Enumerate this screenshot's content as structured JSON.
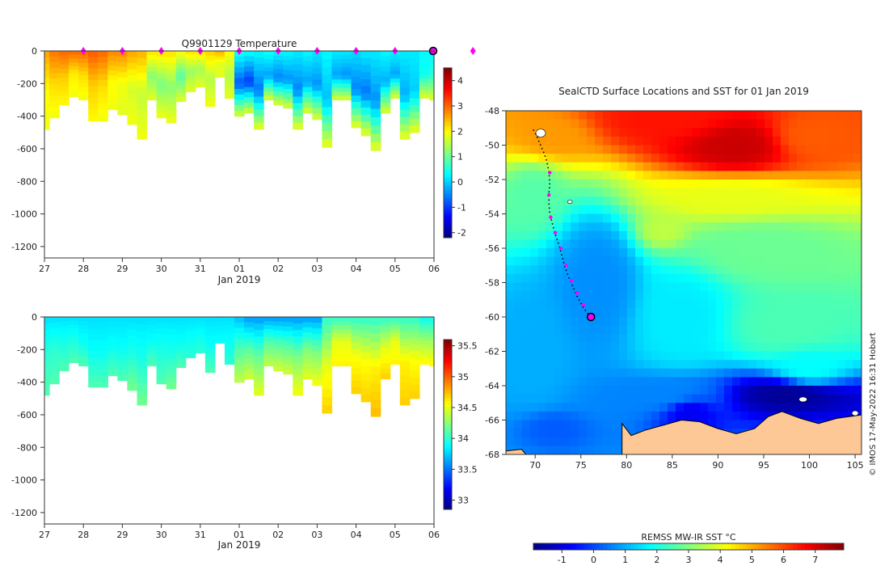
{
  "credit": "© IMOS 17-May-2022 16:31 Hobart",
  "colors": {
    "land": "#fdc896",
    "track": "#000000",
    "marker": "#ff00ff",
    "ice": "#ffffff"
  },
  "chart_data": [
    {
      "id": "temperature-section",
      "type": "heatmap",
      "title": "Q9901129  Temperature",
      "xlabel": "Jan 2019",
      "ylabel": "",
      "x_tick_labels": [
        "27",
        "28",
        "29",
        "30",
        "31",
        "01",
        "02",
        "03",
        "04",
        "05",
        "06"
      ],
      "y_ticks": [
        0,
        -200,
        -400,
        -600,
        -800,
        -1000,
        -1200
      ],
      "ylim": [
        -1270,
        0
      ],
      "colorbar": {
        "min": -2.2,
        "max": 4.5,
        "ticks": [
          -2,
          -1,
          0,
          1,
          2,
          3,
          4
        ],
        "palette": "jet"
      },
      "profile_markers_at_day": [
        1,
        2,
        3,
        4,
        5,
        6,
        7,
        8,
        9,
        10,
        11
      ],
      "profiles": [
        {
          "d": 0.0,
          "depth": 480,
          "v": [
            2.6,
            2.0,
            1.9
          ]
        },
        {
          "d": 0.25,
          "depth": 410,
          "v": [
            2.9,
            2.2,
            1.9
          ]
        },
        {
          "d": 0.5,
          "depth": 330,
          "v": [
            3.0,
            2.3,
            2.0
          ]
        },
        {
          "d": 0.75,
          "depth": 280,
          "v": [
            3.0,
            2.1,
            1.9
          ]
        },
        {
          "d": 1.0,
          "depth": 300,
          "v": [
            3.0,
            2.2,
            1.9
          ]
        },
        {
          "d": 1.25,
          "depth": 430,
          "v": [
            3.1,
            2.3,
            2.0
          ]
        },
        {
          "d": 1.5,
          "depth": 430,
          "v": [
            3.0,
            2.2,
            1.9
          ]
        },
        {
          "d": 1.75,
          "depth": 360,
          "v": [
            2.8,
            2.0,
            1.9
          ]
        },
        {
          "d": 2.0,
          "depth": 390,
          "v": [
            2.8,
            1.9,
            1.8
          ]
        },
        {
          "d": 2.25,
          "depth": 450,
          "v": [
            2.6,
            1.7,
            1.9
          ]
        },
        {
          "d": 2.5,
          "depth": 540,
          "v": [
            2.5,
            1.6,
            1.9
          ]
        },
        {
          "d": 2.75,
          "depth": 300,
          "v": [
            2.2,
            1.2,
            1.8
          ]
        },
        {
          "d": 3.0,
          "depth": 410,
          "v": [
            2.2,
            1.1,
            1.9
          ]
        },
        {
          "d": 3.25,
          "depth": 440,
          "v": [
            2.2,
            1.2,
            1.9
          ]
        },
        {
          "d": 3.5,
          "depth": 310,
          "v": [
            2.0,
            0.9,
            1.8
          ]
        },
        {
          "d": 3.75,
          "depth": 250,
          "v": [
            2.2,
            1.3,
            1.8
          ]
        },
        {
          "d": 4.0,
          "depth": 220,
          "v": [
            2.2,
            1.4,
            1.8
          ]
        },
        {
          "d": 4.25,
          "depth": 340,
          "v": [
            2.3,
            1.5,
            1.9
          ]
        },
        {
          "d": 4.5,
          "depth": 160,
          "v": [
            2.5,
            1.8,
            1.8
          ]
        },
        {
          "d": 4.75,
          "depth": 290,
          "v": [
            2.0,
            1.5,
            1.8
          ]
        },
        {
          "d": 5.0,
          "depth": 400,
          "v": [
            0.5,
            -0.8,
            1.8
          ]
        },
        {
          "d": 5.25,
          "depth": 380,
          "v": [
            0.4,
            -1.0,
            1.8
          ]
        },
        {
          "d": 5.5,
          "depth": 480,
          "v": [
            0.3,
            -0.6,
            1.9
          ]
        },
        {
          "d": 5.75,
          "depth": 300,
          "v": [
            0.4,
            -0.3,
            1.8
          ]
        },
        {
          "d": 6.0,
          "depth": 330,
          "v": [
            0.3,
            -0.5,
            1.8
          ]
        },
        {
          "d": 6.25,
          "depth": 350,
          "v": [
            0.3,
            -0.4,
            1.8
          ]
        },
        {
          "d": 6.5,
          "depth": 480,
          "v": [
            0.2,
            -0.5,
            1.9
          ]
        },
        {
          "d": 6.75,
          "depth": 380,
          "v": [
            0.3,
            -0.3,
            1.8
          ]
        },
        {
          "d": 7.0,
          "depth": 420,
          "v": [
            0.2,
            -0.4,
            1.8
          ]
        },
        {
          "d": 7.25,
          "depth": 590,
          "v": [
            0.3,
            -0.1,
            1.9
          ]
        },
        {
          "d": 7.5,
          "depth": 300,
          "v": [
            0.2,
            -0.3,
            1.8
          ]
        },
        {
          "d": 7.75,
          "depth": 300,
          "v": [
            0.2,
            -0.4,
            1.8
          ]
        },
        {
          "d": 8.0,
          "depth": 470,
          "v": [
            0.1,
            -0.5,
            1.9
          ]
        },
        {
          "d": 8.25,
          "depth": 520,
          "v": [
            0.2,
            -0.6,
            1.9
          ]
        },
        {
          "d": 8.5,
          "depth": 610,
          "v": [
            0.2,
            -0.4,
            1.9
          ]
        },
        {
          "d": 8.75,
          "depth": 380,
          "v": [
            0.3,
            -0.2,
            1.8
          ]
        },
        {
          "d": 9.0,
          "depth": 290,
          "v": [
            0.3,
            -0.3,
            1.8
          ]
        },
        {
          "d": 9.25,
          "depth": 540,
          "v": [
            0.2,
            -0.2,
            1.9
          ]
        },
        {
          "d": 9.5,
          "depth": 500,
          "v": [
            0.2,
            0.0,
            1.9
          ]
        },
        {
          "d": 9.75,
          "depth": 290,
          "v": [
            0.3,
            0.4,
            1.8
          ]
        },
        {
          "d": 10.0,
          "depth": 300,
          "v": [
            0.2,
            0.6,
            1.8
          ]
        }
      ]
    },
    {
      "id": "salinity-section",
      "type": "heatmap",
      "title": "",
      "xlabel": "Jan 2019",
      "ylabel": "",
      "x_tick_labels": [
        "27",
        "28",
        "29",
        "30",
        "31",
        "01",
        "02",
        "03",
        "04",
        "05",
        "06"
      ],
      "y_ticks": [
        0,
        -200,
        -400,
        -600,
        -800,
        -1000,
        -1200
      ],
      "ylim": [
        -1270,
        0
      ],
      "colorbar": {
        "min": 32.85,
        "max": 35.6,
        "ticks": [
          33,
          33.5,
          34,
          34.5,
          35,
          35.5
        ],
        "palette": "jet"
      },
      "profiles": [
        {
          "d": 0.0,
          "depth": 480,
          "v": [
            33.8,
            34.0,
            34.1
          ]
        },
        {
          "d": 0.25,
          "depth": 410,
          "v": [
            33.8,
            34.0,
            34.1
          ]
        },
        {
          "d": 0.5,
          "depth": 330,
          "v": [
            33.8,
            33.95,
            34.1
          ]
        },
        {
          "d": 0.75,
          "depth": 280,
          "v": [
            33.8,
            33.95,
            34.1
          ]
        },
        {
          "d": 1.0,
          "depth": 300,
          "v": [
            33.8,
            33.9,
            34.1
          ]
        },
        {
          "d": 1.25,
          "depth": 430,
          "v": [
            33.8,
            33.9,
            34.1
          ]
        },
        {
          "d": 1.5,
          "depth": 430,
          "v": [
            33.8,
            33.9,
            34.1
          ]
        },
        {
          "d": 1.75,
          "depth": 360,
          "v": [
            33.8,
            33.9,
            34.1
          ]
        },
        {
          "d": 2.0,
          "depth": 390,
          "v": [
            33.8,
            33.9,
            34.1
          ]
        },
        {
          "d": 2.25,
          "depth": 450,
          "v": [
            33.8,
            33.95,
            34.2
          ]
        },
        {
          "d": 2.5,
          "depth": 540,
          "v": [
            33.8,
            33.95,
            34.2
          ]
        },
        {
          "d": 2.75,
          "depth": 300,
          "v": [
            33.8,
            33.9,
            34.1
          ]
        },
        {
          "d": 3.0,
          "depth": 410,
          "v": [
            33.8,
            33.95,
            34.1
          ]
        },
        {
          "d": 3.25,
          "depth": 440,
          "v": [
            33.8,
            33.95,
            34.2
          ]
        },
        {
          "d": 3.5,
          "depth": 310,
          "v": [
            33.8,
            33.9,
            34.1
          ]
        },
        {
          "d": 3.75,
          "depth": 250,
          "v": [
            33.8,
            33.9,
            34.0
          ]
        },
        {
          "d": 4.0,
          "depth": 220,
          "v": [
            33.8,
            33.9,
            34.0
          ]
        },
        {
          "d": 4.25,
          "depth": 340,
          "v": [
            33.8,
            33.9,
            34.1
          ]
        },
        {
          "d": 4.5,
          "depth": 160,
          "v": [
            33.8,
            33.85,
            33.9
          ]
        },
        {
          "d": 4.75,
          "depth": 290,
          "v": [
            33.8,
            33.9,
            34.0
          ]
        },
        {
          "d": 5.0,
          "depth": 400,
          "v": [
            33.7,
            34.1,
            34.4
          ]
        },
        {
          "d": 5.25,
          "depth": 380,
          "v": [
            33.6,
            34.1,
            34.45
          ]
        },
        {
          "d": 5.5,
          "depth": 480,
          "v": [
            33.6,
            34.15,
            34.5
          ]
        },
        {
          "d": 5.75,
          "depth": 300,
          "v": [
            33.6,
            34.1,
            34.4
          ]
        },
        {
          "d": 6.0,
          "depth": 330,
          "v": [
            33.6,
            34.1,
            34.45
          ]
        },
        {
          "d": 6.25,
          "depth": 350,
          "v": [
            33.6,
            34.1,
            34.45
          ]
        },
        {
          "d": 6.5,
          "depth": 480,
          "v": [
            33.6,
            34.2,
            34.55
          ]
        },
        {
          "d": 6.75,
          "depth": 380,
          "v": [
            33.6,
            34.2,
            34.5
          ]
        },
        {
          "d": 7.0,
          "depth": 420,
          "v": [
            33.6,
            34.2,
            34.55
          ]
        },
        {
          "d": 7.25,
          "depth": 590,
          "v": [
            34.0,
            34.5,
            34.7
          ]
        },
        {
          "d": 7.5,
          "depth": 300,
          "v": [
            34.0,
            34.5,
            34.6
          ]
        },
        {
          "d": 7.75,
          "depth": 300,
          "v": [
            34.0,
            34.5,
            34.6
          ]
        },
        {
          "d": 8.0,
          "depth": 470,
          "v": [
            34.0,
            34.55,
            34.7
          ]
        },
        {
          "d": 8.25,
          "depth": 520,
          "v": [
            34.0,
            34.55,
            34.7
          ]
        },
        {
          "d": 8.5,
          "depth": 610,
          "v": [
            34.0,
            34.6,
            34.75
          ]
        },
        {
          "d": 8.75,
          "depth": 380,
          "v": [
            34.0,
            34.5,
            34.7
          ]
        },
        {
          "d": 9.0,
          "depth": 290,
          "v": [
            34.0,
            34.5,
            34.6
          ]
        },
        {
          "d": 9.25,
          "depth": 540,
          "v": [
            34.0,
            34.6,
            34.7
          ]
        },
        {
          "d": 9.5,
          "depth": 500,
          "v": [
            34.0,
            34.55,
            34.7
          ]
        },
        {
          "d": 9.75,
          "depth": 290,
          "v": [
            33.9,
            34.3,
            34.6
          ]
        },
        {
          "d": 10.0,
          "depth": 300,
          "v": [
            33.9,
            34.3,
            34.6
          ]
        }
      ]
    },
    {
      "id": "sst-map",
      "type": "heatmap",
      "title": "SealCTD Surface Locations and SST for 01 Jan 2019",
      "xlabel": "",
      "ylabel": "",
      "x_ticks": [
        70,
        75,
        80,
        85,
        90,
        95,
        100,
        105
      ],
      "y_ticks": [
        -48,
        -50,
        -52,
        -54,
        -56,
        -58,
        -60,
        -62,
        -64,
        -66,
        -68
      ],
      "xlim": [
        66.8,
        105.7
      ],
      "ylim": [
        -68,
        -48
      ],
      "colorbar": {
        "label": "REMSS MW-IR SST °C",
        "min": -1.9,
        "max": 7.9,
        "ticks": [
          -1,
          0,
          1,
          2,
          3,
          4,
          5,
          6,
          7
        ],
        "palette": "jet",
        "orientation": "horizontal"
      },
      "seal_track": [
        [
          69.8,
          -49.1
        ],
        [
          70.1,
          -49.4
        ],
        [
          70.5,
          -49.9
        ],
        [
          71.0,
          -50.5
        ],
        [
          71.3,
          -51.0
        ],
        [
          71.5,
          -51.6
        ],
        [
          71.6,
          -52.2
        ],
        [
          71.5,
          -52.8
        ],
        [
          71.5,
          -53.4
        ],
        [
          71.6,
          -54.0
        ],
        [
          71.9,
          -54.6
        ],
        [
          72.2,
          -55.2
        ],
        [
          72.6,
          -55.8
        ],
        [
          72.9,
          -56.4
        ],
        [
          73.2,
          -57.0
        ],
        [
          73.6,
          -57.6
        ],
        [
          74.1,
          -58.2
        ],
        [
          74.6,
          -58.8
        ],
        [
          75.1,
          -59.3
        ],
        [
          75.6,
          -59.7
        ],
        [
          76.1,
          -60.0
        ]
      ],
      "profile_markers": [
        [
          71.6,
          -51.6
        ],
        [
          71.5,
          -52.9
        ],
        [
          71.7,
          -54.2
        ],
        [
          72.2,
          -55.1
        ],
        [
          72.8,
          -56.0
        ],
        [
          73.4,
          -57.0
        ],
        [
          74.0,
          -57.9
        ],
        [
          74.6,
          -58.6
        ],
        [
          75.3,
          -59.3
        ]
      ],
      "last_position": [
        76.1,
        -60.0
      ],
      "sst_regions": [
        {
          "c": [
            85,
            -48.5
          ],
          "r": [
            12,
            2.2
          ],
          "v": 6.5
        },
        {
          "c": [
            92,
            -50
          ],
          "r": [
            10,
            2.5
          ],
          "v": 7.2
        },
        {
          "c": [
            100,
            -49.5
          ],
          "r": [
            8,
            2.5
          ],
          "v": 5.8
        },
        {
          "c": [
            72,
            -49.5
          ],
          "r": [
            6,
            1.8
          ],
          "v": 5.2
        },
        {
          "c": [
            92,
            -53
          ],
          "r": [
            14,
            2
          ],
          "v": 4.0
        },
        {
          "c": [
            95,
            -56
          ],
          "r": [
            12,
            2.5
          ],
          "v": 2.8
        },
        {
          "c": [
            84,
            -55
          ],
          "r": [
            4,
            1.5
          ],
          "v": 3.6
        },
        {
          "c": [
            98,
            -60.5
          ],
          "r": [
            9,
            2.5
          ],
          "v": 2.5
        },
        {
          "c": [
            70,
            -53
          ],
          "r": [
            4,
            2.5
          ],
          "v": 2.6
        },
        {
          "c": [
            86,
            -60
          ],
          "r": [
            7,
            4
          ],
          "v": 1.6
        },
        {
          "c": [
            77,
            -58
          ],
          "r": [
            6,
            5
          ],
          "v": 0.7
        },
        {
          "c": [
            70,
            -62
          ],
          "r": [
            5,
            4
          ],
          "v": 1.0
        },
        {
          "c": [
            84,
            -64.5
          ],
          "r": [
            10,
            1.5
          ],
          "v": 0.6
        },
        {
          "c": [
            100,
            -63
          ],
          "r": [
            6,
            2
          ],
          "v": 1.8
        },
        {
          "c": [
            87,
            -65.5
          ],
          "r": [
            4,
            1.5
          ],
          "v": -0.8
        },
        {
          "c": [
            98,
            -64.5
          ],
          "r": [
            10,
            1.5
          ],
          "v": -1.7
        },
        {
          "c": [
            72,
            -66.5
          ],
          "r": [
            4,
            1.2
          ],
          "v": 0.2
        }
      ]
    }
  ]
}
